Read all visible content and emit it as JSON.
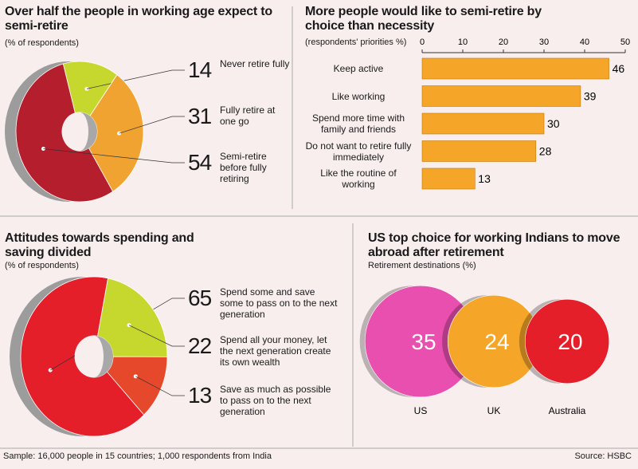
{
  "chart_data": [
    {
      "type": "pie",
      "title": "Over half the people in working age expect to semi-retire",
      "subtitle": "(% of respondents)",
      "categories": [
        "Never retire fully",
        "Fully retire at one go",
        "Semi-retire before fully retiring"
      ],
      "values": [
        14,
        31,
        54
      ],
      "colors": [
        "#c6d82e",
        "#f0a331",
        "#b51e2c"
      ]
    },
    {
      "type": "bar",
      "title": "More people would like to semi-retire by choice than necessity",
      "subtitle": "(respondents' priorities %)",
      "categories": [
        "Keep active",
        "Like working",
        "Spend more time with family and friends",
        "Do not want to retire fully immediately",
        "Like the routine of working"
      ],
      "values": [
        46,
        39,
        30,
        28,
        13
      ],
      "color": "#f5a528",
      "xlim": [
        0,
        50
      ],
      "xticks": [
        0,
        10,
        20,
        30,
        40,
        50
      ]
    },
    {
      "type": "pie",
      "title": "Attitudes towards spending and saving divided",
      "subtitle": "(% of respondents)",
      "categories": [
        "Spend some and save some to pass on to the next generation",
        "Spend all your money, let the next generation create its own wealth",
        "Save as much as possible to pass on to the next generation"
      ],
      "values": [
        65,
        22,
        13
      ],
      "colors": [
        "#e41f2a",
        "#c6d82e",
        "#e6482b"
      ]
    },
    {
      "type": "bubble",
      "title": "US top choice for working Indians to move abroad after retirement",
      "subtitle": "Retirement destinations (%)",
      "categories": [
        "US",
        "UK",
        "Australia"
      ],
      "values": [
        35,
        24,
        20
      ],
      "colors": [
        "#e94faf",
        "#f5a528",
        "#e41f2a"
      ]
    }
  ],
  "footer": {
    "sample": "Sample: 16,000 people in 15 countries; 1,000 respondents from India",
    "source": "Source: HSBC"
  }
}
